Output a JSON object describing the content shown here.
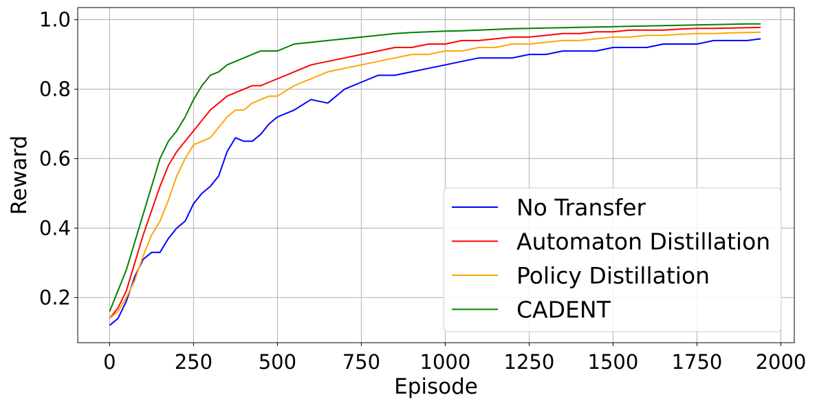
{
  "chart_data": {
    "type": "line",
    "xlabel": "Episode",
    "ylabel": "Reward",
    "xlim": [
      -95,
      2040
    ],
    "ylim": [
      0.07,
      1.035
    ],
    "xticks": [
      0,
      250,
      500,
      750,
      1000,
      1250,
      1500,
      1750,
      2000
    ],
    "yticks": [
      0.2,
      0.4,
      0.6,
      0.8,
      1.0
    ],
    "xtick_labels": [
      "0",
      "250",
      "500",
      "750",
      "1000",
      "1250",
      "1500",
      "1750",
      "2000"
    ],
    "ytick_labels": [
      "0.2",
      "0.4",
      "0.6",
      "0.8",
      "1.0"
    ],
    "grid": true,
    "legend_position": "lower-right",
    "series": [
      {
        "name": "No Transfer",
        "color": "#0000ff",
        "x": [
          0,
          25,
          50,
          75,
          100,
          125,
          150,
          175,
          200,
          225,
          250,
          275,
          300,
          325,
          350,
          375,
          400,
          425,
          450,
          475,
          500,
          550,
          600,
          650,
          700,
          750,
          800,
          850,
          900,
          950,
          1000,
          1050,
          1100,
          1150,
          1200,
          1250,
          1300,
          1350,
          1400,
          1450,
          1500,
          1550,
          1600,
          1650,
          1700,
          1750,
          1800,
          1850,
          1900,
          1940
        ],
        "y": [
          0.12,
          0.14,
          0.19,
          0.26,
          0.31,
          0.33,
          0.33,
          0.37,
          0.4,
          0.42,
          0.47,
          0.5,
          0.52,
          0.55,
          0.62,
          0.66,
          0.65,
          0.65,
          0.67,
          0.7,
          0.72,
          0.74,
          0.77,
          0.76,
          0.8,
          0.82,
          0.84,
          0.84,
          0.85,
          0.86,
          0.87,
          0.88,
          0.89,
          0.89,
          0.89,
          0.9,
          0.9,
          0.91,
          0.91,
          0.91,
          0.92,
          0.92,
          0.92,
          0.93,
          0.93,
          0.93,
          0.94,
          0.94,
          0.94,
          0.945
        ]
      },
      {
        "name": "Automaton Distillation",
        "color": "#ff0000",
        "x": [
          0,
          25,
          50,
          75,
          100,
          125,
          150,
          175,
          200,
          225,
          250,
          275,
          300,
          325,
          350,
          375,
          400,
          425,
          450,
          475,
          500,
          550,
          600,
          650,
          700,
          750,
          800,
          850,
          900,
          950,
          1000,
          1050,
          1100,
          1150,
          1200,
          1250,
          1300,
          1350,
          1400,
          1450,
          1500,
          1550,
          1600,
          1650,
          1700,
          1750,
          1800,
          1850,
          1900,
          1940
        ],
        "y": [
          0.14,
          0.17,
          0.22,
          0.3,
          0.38,
          0.45,
          0.52,
          0.58,
          0.62,
          0.65,
          0.68,
          0.71,
          0.74,
          0.76,
          0.78,
          0.79,
          0.8,
          0.81,
          0.81,
          0.82,
          0.83,
          0.85,
          0.87,
          0.88,
          0.89,
          0.9,
          0.91,
          0.92,
          0.92,
          0.93,
          0.93,
          0.94,
          0.94,
          0.945,
          0.95,
          0.95,
          0.955,
          0.96,
          0.96,
          0.965,
          0.965,
          0.97,
          0.97,
          0.97,
          0.973,
          0.975,
          0.975,
          0.976,
          0.977,
          0.978
        ]
      },
      {
        "name": "Policy Distillation",
        "color": "#ffa500",
        "x": [
          0,
          25,
          50,
          75,
          100,
          125,
          150,
          175,
          200,
          225,
          250,
          275,
          300,
          325,
          350,
          375,
          400,
          425,
          450,
          475,
          500,
          550,
          600,
          650,
          700,
          750,
          800,
          850,
          900,
          950,
          1000,
          1050,
          1100,
          1150,
          1200,
          1250,
          1300,
          1350,
          1400,
          1450,
          1500,
          1550,
          1600,
          1650,
          1700,
          1750,
          1800,
          1850,
          1900,
          1940
        ],
        "y": [
          0.14,
          0.16,
          0.2,
          0.25,
          0.32,
          0.38,
          0.42,
          0.48,
          0.55,
          0.6,
          0.64,
          0.65,
          0.66,
          0.69,
          0.72,
          0.74,
          0.74,
          0.76,
          0.77,
          0.78,
          0.78,
          0.81,
          0.83,
          0.85,
          0.86,
          0.87,
          0.88,
          0.89,
          0.9,
          0.9,
          0.91,
          0.91,
          0.92,
          0.92,
          0.93,
          0.93,
          0.935,
          0.94,
          0.94,
          0.945,
          0.95,
          0.95,
          0.955,
          0.955,
          0.958,
          0.96,
          0.96,
          0.962,
          0.963,
          0.964
        ]
      },
      {
        "name": "CADENT",
        "color": "#008000",
        "x": [
          0,
          25,
          50,
          75,
          100,
          125,
          150,
          175,
          200,
          225,
          250,
          275,
          300,
          325,
          350,
          375,
          400,
          425,
          450,
          475,
          500,
          550,
          600,
          650,
          700,
          750,
          800,
          850,
          900,
          950,
          1000,
          1050,
          1100,
          1150,
          1200,
          1250,
          1300,
          1350,
          1400,
          1450,
          1500,
          1550,
          1600,
          1650,
          1700,
          1750,
          1800,
          1850,
          1900,
          1940
        ],
        "y": [
          0.16,
          0.22,
          0.28,
          0.36,
          0.44,
          0.52,
          0.6,
          0.65,
          0.68,
          0.72,
          0.77,
          0.81,
          0.84,
          0.85,
          0.87,
          0.88,
          0.89,
          0.9,
          0.91,
          0.91,
          0.91,
          0.93,
          0.935,
          0.94,
          0.945,
          0.95,
          0.955,
          0.96,
          0.963,
          0.965,
          0.967,
          0.968,
          0.97,
          0.972,
          0.974,
          0.975,
          0.976,
          0.977,
          0.978,
          0.979,
          0.98,
          0.981,
          0.982,
          0.983,
          0.984,
          0.985,
          0.986,
          0.987,
          0.988,
          0.988
        ]
      }
    ]
  }
}
